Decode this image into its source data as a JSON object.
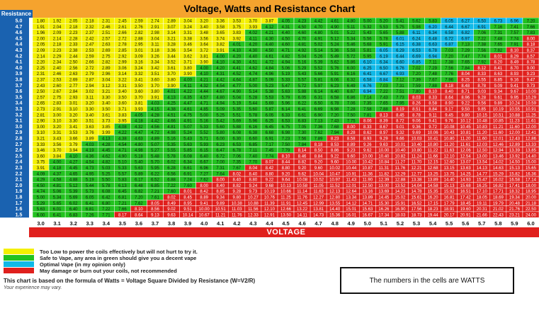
{
  "colors": {
    "low": "#f4f000",
    "safe": "#22c21f",
    "optimal": "#10b9e8",
    "damage": "#e0201d",
    "banner": "#f5a32e",
    "axis_blue": "#1a62b0"
  },
  "legend": [
    {
      "key": "low",
      "label": "Too Low to power the coils effectively but will not hurt to try it."
    },
    {
      "key": "safe",
      "label": "Safe to Vape, any area in green should give you a decent vape"
    },
    {
      "key": "optimal",
      "label": "Optimal Vape (in my opinion only)"
    },
    {
      "key": "damage",
      "label": "May damage or burn out your coils, not recommended"
    }
  ],
  "formula_note": "This chart is based on the formula of Watts = Voltage Square Divided by Resistance (W=V2/R)",
  "experience_note": "Your experience may vary.",
  "watts_note": "The numbers in the cells are WATTS",
  "chart_data": {
    "type": "heatmap",
    "title": "Voltage, Watts and Resistance Chart",
    "xlabel": "VOLTAGE",
    "ylabel": "Resistance",
    "x": [
      3.0,
      3.1,
      3.2,
      3.3,
      3.4,
      3.5,
      3.6,
      3.7,
      3.8,
      3.9,
      4.0,
      4.1,
      4.2,
      4.3,
      4.4,
      4.5,
      4.6,
      4.7,
      4.8,
      4.9,
      5.0,
      5.1,
      5.2,
      5.3,
      5.4,
      5.5,
      5.6,
      5.7,
      5.8,
      5.9,
      6.0
    ],
    "y": [
      5.0,
      4.7,
      4.6,
      4.5,
      4.4,
      4.3,
      4.2,
      4.1,
      4.0,
      3.9,
      3.8,
      3.7,
      3.6,
      3.5,
      3.4,
      3.3,
      3.2,
      3.1,
      3.0,
      2.9,
      2.8,
      2.7,
      2.6,
      2.5,
      2.4,
      2.3,
      2.2,
      2.1,
      2.0,
      1.9,
      1.8,
      1.7,
      1.6,
      1.5
    ],
    "x_tick_labels": [
      "3.0",
      "3.1",
      "3.2",
      "3.3",
      "3.4",
      "3.5",
      "3.6",
      "3.7",
      "3.8",
      "3.9",
      "4.0",
      "4.1",
      "4.2",
      "4.3",
      "4.4",
      "4.5",
      "4.6",
      "4.7",
      "4.8",
      "4.9",
      "5.0",
      "5.1",
      "5.2",
      "5.3",
      "5.4",
      "5.5",
      "5.6",
      "5.7",
      "5.8",
      "5.9",
      "6.0"
    ],
    "y_tick_labels": [
      "5.0",
      "4.7",
      "4.6",
      "4.5",
      "4.4",
      "4.3",
      "4.2",
      "4.1",
      "4.0",
      "3.9",
      "3.8",
      "3.7",
      "3.6",
      "3.5",
      "3.4",
      "3.3",
      "3.2",
      "3.1",
      "3.0",
      "2.9",
      "2.8",
      "2.7",
      "2.6",
      "2.5",
      "2.4",
      "2.3",
      "2.2",
      "2.1",
      "2.0",
      "1.9",
      "1.8",
      "1.7",
      "1.6",
      "1.5"
    ],
    "values": "W = V^2 / R for each resistance row and voltage column, rounded to 2 decimals",
    "zone_rule": "watts < 4.0 = low (yellow); 4.0-7.99 = safe (green); 6.0-6.99 at voltages 5.0 and above = optimal (cyan); >= 8.0 = damage (red)"
  }
}
